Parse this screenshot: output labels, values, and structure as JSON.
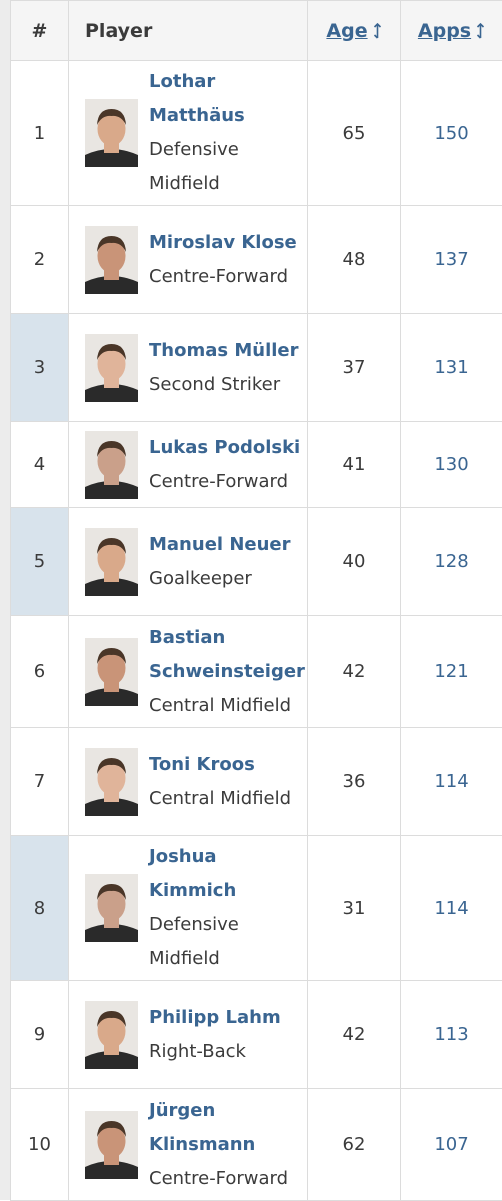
{
  "table": {
    "header": [
      "#",
      "Player",
      "Age",
      "Apps"
    ],
    "rows": [
      {
        "rank": 1,
        "name": "Lothar Matthäus",
        "position": "Defensive Midfield",
        "age": 65,
        "apps": 150
      },
      {
        "rank": 2,
        "name": "Miroslav Klose",
        "position": "Centre-Forward",
        "age": 48,
        "apps": 137
      },
      {
        "rank": 3,
        "name": "Thomas Müller",
        "position": "Second Striker",
        "age": 37,
        "apps": 131
      },
      {
        "rank": 4,
        "name": "Lukas Podolski",
        "position": "Centre-Forward",
        "age": 41,
        "apps": 130
      },
      {
        "rank": 5,
        "name": "Manuel Neuer",
        "position": "Goalkeeper",
        "age": 40,
        "apps": 128
      },
      {
        "rank": 6,
        "name": "Bastian Schweinsteiger",
        "position": "Central Midfield",
        "age": 42,
        "apps": 121
      },
      {
        "rank": 7,
        "name": "Toni Kroos",
        "position": "Central Midfield",
        "age": 36,
        "apps": 114
      },
      {
        "rank": 8,
        "name": "Joshua Kimmich",
        "position": "Defensive Midfield",
        "age": 31,
        "apps": 114
      },
      {
        "rank": 9,
        "name": "Philipp Lahm",
        "position": "Right-Back",
        "age": 42,
        "apps": 113
      },
      {
        "rank": 10,
        "name": "Jürgen Klinsmann",
        "position": "Centre-Forward",
        "age": 62,
        "apps": 107
      }
    ]
  }
}
